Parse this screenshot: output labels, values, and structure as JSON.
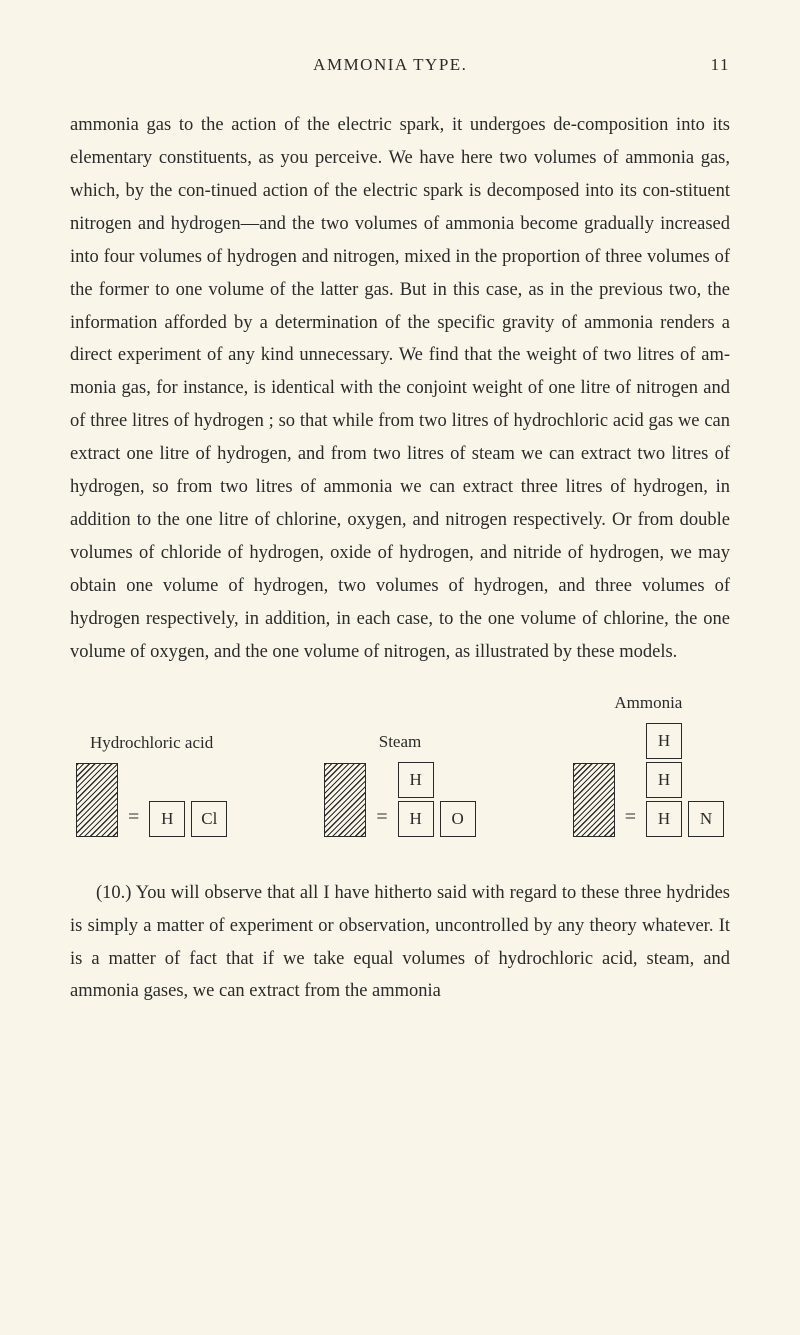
{
  "header": {
    "title": "AMMONIA TYPE.",
    "page": "11"
  },
  "para1": "ammonia gas to the action of the electric spark, it undergoes de-composition into its elementary constituents, as you perceive. We have here two volumes of ammonia gas, which, by the con-tinued action of the electric spark is decomposed into its con-stituent nitrogen and hydrogen—and the two volumes of ammonia become gradually increased into four volumes of hydrogen and nitrogen, mixed in the proportion of three volumes of the former to one volume of the latter gas. But in this case, as in the previous two, the information afforded by a determination of the specific gravity of ammonia renders a direct experiment of any kind unnecessary. We find that the weight of two litres of am-monia gas, for instance, is identical with the conjoint weight of one litre of nitrogen and of three litres of hydrogen ; so that while from two litres of hydrochloric acid gas we can extract one litre of hydrogen, and from two litres of steam we can extract two litres of hydrogen, so from two litres of ammonia we can extract three litres of hydrogen, in addition to the one litre of chlorine, oxygen, and nitrogen respectively. Or from double volumes of chloride of hydrogen, oxide of hydrogen, and nitride of hydrogen, we may obtain one volume of hydrogen, two volumes of hydrogen, and three volumes of hydrogen respectively, in addition, in each case, to the one volume of chlorine, the one volume of oxygen, and the one volume of nitrogen, as illustrated by these models.",
  "models": {
    "hcl_label": "Hydrochloric acid",
    "steam_label": "Steam",
    "ammonia_label": "Ammonia",
    "eq": "=",
    "H": "H",
    "Cl": "Cl",
    "O": "O",
    "N": "N"
  },
  "para2": "(10.) You will observe that all I have hitherto said with regard to these three hydrides is simply a matter of experiment or observation, uncontrolled by any theory whatever. It is a matter of fact that if we take equal volumes of hydrochloric acid, steam, and ammonia gases, we can extract from the ammonia"
}
